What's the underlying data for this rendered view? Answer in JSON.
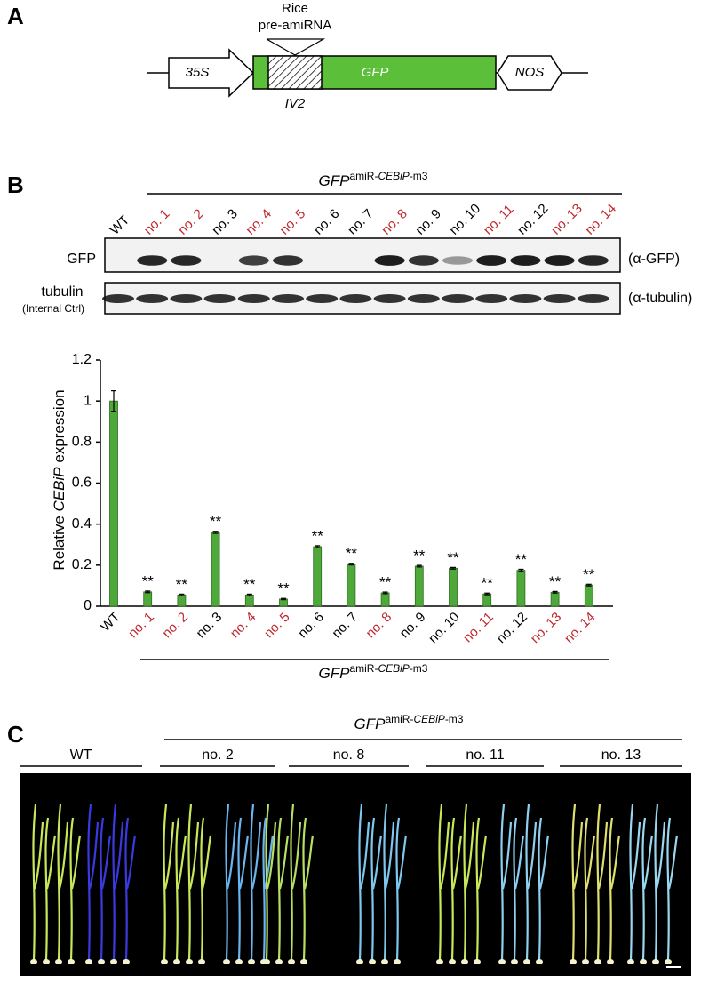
{
  "panel_a": {
    "label": "A",
    "insert_top": "Rice",
    "insert_bottom": "pre-amiRNA",
    "promoter": "35S",
    "gene": "GFP",
    "terminator": "NOS",
    "intron": "IV2"
  },
  "panel_b": {
    "label": "B",
    "group_label": {
      "main": "GFP",
      "sup_prefix": "amiR-",
      "sup_italic": "CEBiP",
      "sup_suffix": "-m3"
    },
    "blot_rows": [
      {
        "label": "GFP",
        "antibody": "(α-GFP)"
      },
      {
        "label": "tubulin",
        "sublabel": "(Internal Ctrl)",
        "antibody": "(α-tubulin)"
      }
    ]
  },
  "chart_data": {
    "type": "bar",
    "ylabel": {
      "prefix": "Relative ",
      "italic": "CEBiP",
      "suffix": " expression"
    },
    "categories": [
      "WT",
      "no. 1",
      "no. 2",
      "no. 3",
      "no. 4",
      "no. 5",
      "no. 6",
      "no. 7",
      "no. 8",
      "no. 9",
      "no. 10",
      "no. 11",
      "no. 12",
      "no. 13",
      "no. 14"
    ],
    "category_colors": [
      "#000000",
      "#c0272d",
      "#c0272d",
      "#000000",
      "#c0272d",
      "#c0272d",
      "#000000",
      "#000000",
      "#c0272d",
      "#000000",
      "#000000",
      "#c0272d",
      "#000000",
      "#c0272d",
      "#c0272d"
    ],
    "series": [
      {
        "name": "Relative CEBiP expression",
        "color": "#4fa83a",
        "values": [
          1.0,
          0.07,
          0.055,
          0.36,
          0.055,
          0.035,
          0.29,
          0.205,
          0.065,
          0.195,
          0.185,
          0.06,
          0.175,
          0.068,
          0.103
        ],
        "errors": [
          0.05,
          0.004,
          0.004,
          0.005,
          0.004,
          0.003,
          0.005,
          0.004,
          0.004,
          0.004,
          0.004,
          0.004,
          0.005,
          0.004,
          0.004
        ],
        "annotations": [
          null,
          "**",
          "**",
          "**",
          "**",
          "**",
          "**",
          "**",
          "**",
          "**",
          "**",
          "**",
          "**",
          "**",
          "**"
        ]
      }
    ],
    "ylim": [
      0,
      1.2
    ],
    "yticks": [
      0,
      0.2,
      0.4,
      0.6,
      0.8,
      1,
      1.2
    ]
  },
  "panel_c": {
    "label": "C",
    "groups": [
      "WT",
      "no. 2",
      "no. 8",
      "no. 11",
      "no. 13"
    ]
  }
}
